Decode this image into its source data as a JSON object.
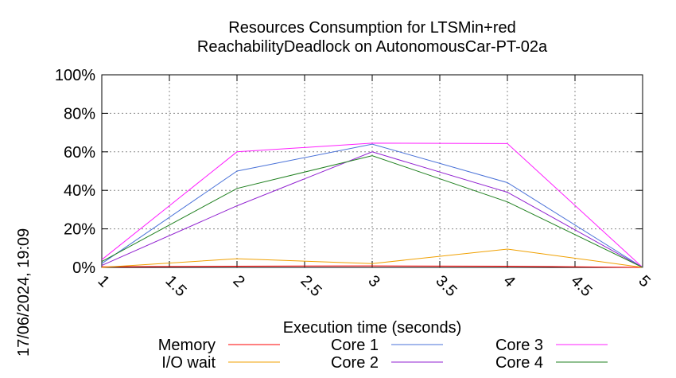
{
  "chart_data": {
    "type": "line",
    "title_line1": "Resources Consumption for LTSMin+red",
    "title_line2": "ReachabilityDeadlock on AutonomousCar-PT-02a",
    "xlabel": "Execution time (seconds)",
    "ylabel": "",
    "timestamp": "17/06/2024, 19:09",
    "xlim": [
      1,
      5
    ],
    "ylim": [
      0,
      100
    ],
    "x_ticks": [
      "1",
      "1.5",
      "2",
      "2.5",
      "3",
      "3.5",
      "4",
      "4.5",
      "5"
    ],
    "x_tick_values": [
      1,
      1.5,
      2,
      2.5,
      3,
      3.5,
      4,
      4.5,
      5
    ],
    "y_ticks": [
      "0%",
      "20%",
      "40%",
      "60%",
      "80%",
      "100%"
    ],
    "y_tick_values": [
      0,
      20,
      40,
      60,
      80,
      100
    ],
    "grid": true,
    "legend_position": "bottom",
    "series": [
      {
        "name": "Memory",
        "color": "#ff0000",
        "x": [
          1,
          2,
          3,
          4,
          5
        ],
        "y": [
          0.3,
          0.6,
          0.8,
          0.6,
          0
        ]
      },
      {
        "name": "I/O wait",
        "color": "#f0a000",
        "x": [
          1,
          2,
          3,
          4,
          5
        ],
        "y": [
          0,
          4.5,
          2,
          9.5,
          0
        ]
      },
      {
        "name": "Core 1",
        "color": "#4a72d8",
        "x": [
          1,
          2,
          3,
          4,
          5
        ],
        "y": [
          2,
          50,
          64,
          44,
          0
        ]
      },
      {
        "name": "Core 2",
        "color": "#9020d0",
        "x": [
          1,
          2,
          3,
          4,
          5
        ],
        "y": [
          1,
          32,
          60,
          39,
          0
        ]
      },
      {
        "name": "Core 3",
        "color": "#ff20ff",
        "x": [
          1,
          2,
          3,
          4,
          5
        ],
        "y": [
          4,
          60,
          64.5,
          64.3,
          0
        ]
      },
      {
        "name": "Core 4",
        "color": "#208020",
        "x": [
          1,
          2,
          3,
          4,
          5
        ],
        "y": [
          3,
          41,
          58,
          34,
          0
        ]
      }
    ]
  }
}
